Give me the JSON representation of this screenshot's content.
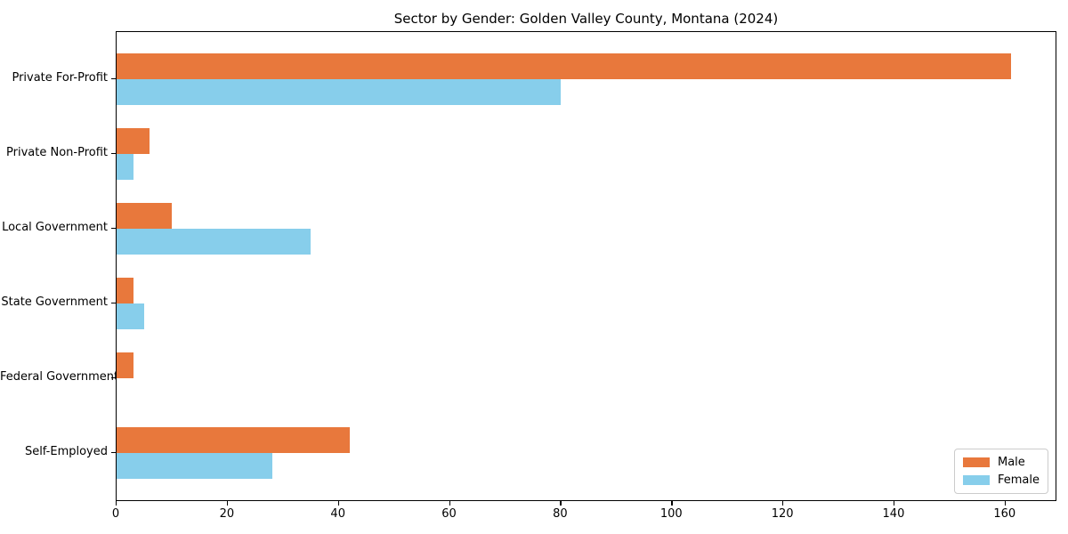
{
  "chart_data": {
    "type": "bar",
    "orientation": "horizontal",
    "title": "Sector by Gender: Golden Valley County, Montana (2024)",
    "categories": [
      "Private For-Profit",
      "Private Non-Profit",
      "Local Government",
      "State Government",
      "Federal Government",
      "Self-Employed"
    ],
    "series": [
      {
        "name": "Male",
        "color": "#e8783c",
        "values": [
          161,
          6,
          10,
          3,
          3,
          42
        ]
      },
      {
        "name": "Female",
        "color": "#87ceeb",
        "values": [
          80,
          3,
          35,
          5,
          0,
          28
        ]
      }
    ],
    "xlabel": "",
    "ylabel": "",
    "xlim": [
      0,
      169
    ],
    "xticks": [
      0,
      20,
      40,
      60,
      80,
      100,
      120,
      140,
      160
    ],
    "grid": false,
    "legend": {
      "position": "lower right"
    },
    "colors": {
      "axis": "#000000",
      "legend_border": "#cccccc",
      "background": "#ffffff"
    }
  }
}
